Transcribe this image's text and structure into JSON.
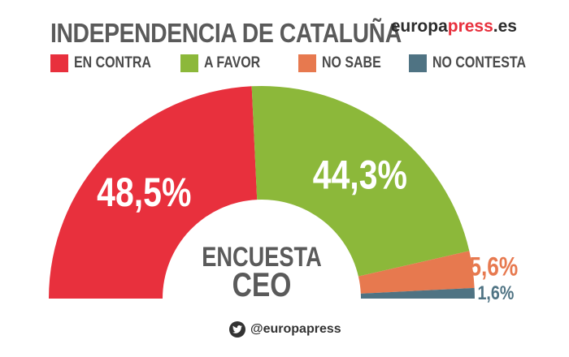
{
  "header": {
    "title": "INDEPENDENCIA DE CATALUÑA",
    "brand": {
      "part1": "europa",
      "part2": "press",
      "part3": ".es"
    }
  },
  "footer": {
    "handle": "@europapress",
    "icon": "twitter-icon"
  },
  "colors": {
    "en_contra": "#e8303d",
    "a_favor": "#8cb83a",
    "no_sabe": "#e7794f",
    "no_contesta": "#4f7383",
    "text_dark": "#5a5a5a"
  },
  "chart_data": {
    "type": "pie",
    "subtype": "semicircle-donut",
    "title": "INDEPENDENCIA DE CATALUÑA",
    "center_text": [
      "ENCUESTA",
      "CEO"
    ],
    "categories": [
      "EN CONTRA",
      "A FAVOR",
      "NO SABE",
      "NO CONTESTA"
    ],
    "values": [
      48.5,
      44.3,
      5.6,
      1.6
    ],
    "value_labels": [
      "48,5%",
      "44,3%",
      "5,6%",
      "1,6%"
    ],
    "colors": [
      "#e8303d",
      "#8cb83a",
      "#e7794f",
      "#4f7383"
    ],
    "legend_position": "top"
  }
}
